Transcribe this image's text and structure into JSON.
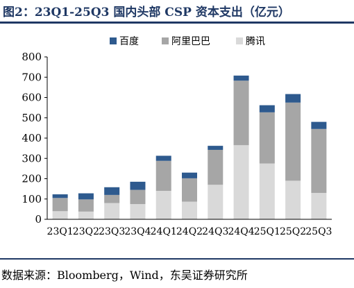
{
  "title": "图2：23Q1-25Q3 国内头部 CSP 资本支出（亿元）",
  "source": "数据来源：Bloomberg，Wind，东吴证券研究所",
  "chart_data": {
    "type": "bar",
    "stacked": true,
    "categories": [
      "23Q1",
      "23Q2",
      "23Q3",
      "23Q4",
      "24Q1",
      "24Q2",
      "24Q3",
      "24Q4",
      "25Q1",
      "25Q2",
      "25Q3"
    ],
    "series": [
      {
        "name": "腾讯",
        "color": "#d9d9d9",
        "values": [
          40,
          38,
          80,
          75,
          140,
          87,
          170,
          365,
          275,
          190,
          130
        ]
      },
      {
        "name": "阿里巴巴",
        "color": "#a6a6a6",
        "values": [
          65,
          60,
          40,
          70,
          148,
          115,
          172,
          318,
          252,
          385,
          315
        ]
      },
      {
        "name": "百度",
        "color": "#2e5a8e",
        "values": [
          18,
          30,
          38,
          40,
          25,
          28,
          20,
          25,
          35,
          42,
          35
        ]
      }
    ],
    "legend_order": [
      "百度",
      "阿里巴巴",
      "腾讯"
    ],
    "legend_position": "top-right",
    "ylim": [
      0,
      800
    ],
    "yticks": [
      0,
      100,
      200,
      300,
      400,
      500,
      600,
      700,
      800
    ],
    "grid": false,
    "xlabel": "",
    "ylabel": ""
  }
}
